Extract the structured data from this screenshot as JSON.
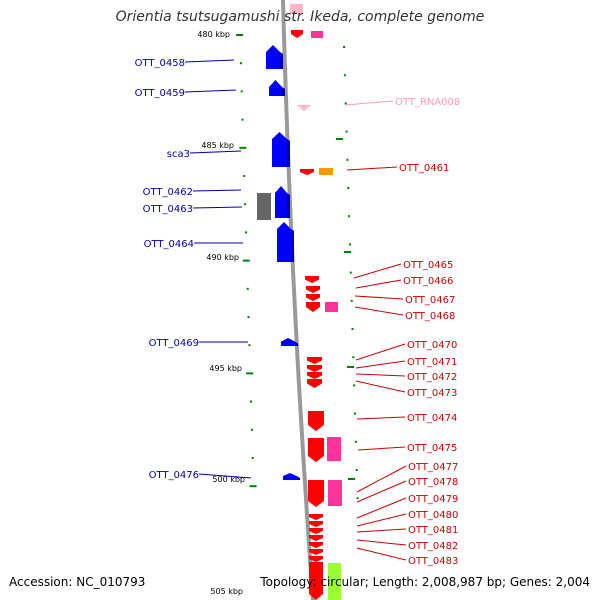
{
  "title": "Orientia tsutsugamushi str. Ikeda, complete genome",
  "accession": "Accession: NC_010793",
  "topology": "Topology: circular; Length: 2,008,987 bp; Genes: 2,004",
  "scale_labels": [
    "480 kbp",
    "485 kbp",
    "490 kbp",
    "495 kbp",
    "500 kbp",
    "505 kbp"
  ],
  "colors": {
    "minus_strand_gene": "#0000ff",
    "minus_strand_dark": "#0000b0",
    "plus_strand_gene": "#ff0000",
    "plus_strand_dark": "#b00000",
    "rna": "#ffb6c8",
    "pseudo_gray": "#666666",
    "magenta_feature": "#ff3399",
    "orange_feature": "#ff9900",
    "lime_feature": "#99ff33",
    "backbone": "#999999",
    "tick": "#008000",
    "minus_label": "#0000aa",
    "plus_label": "#cc0000",
    "rna_label": "#ff99bb"
  },
  "left_labels": [
    "OTT_0458",
    "OTT_0459",
    "sca3",
    "OTT_0462",
    "OTT_0463",
    "OTT_0464",
    "OTT_0469",
    "OTT_0476"
  ],
  "right_labels": [
    "OTT_RNA008",
    "OTT_0461",
    "OTT_0465",
    "OTT_0466",
    "OTT_0467",
    "OTT_0468",
    "OTT_0470",
    "OTT_0471",
    "OTT_0472",
    "OTT_0473",
    "OTT_0474",
    "OTT_0475",
    "OTT_0477",
    "OTT_0478",
    "OTT_0479",
    "OTT_0480",
    "OTT_0481",
    "OTT_0482",
    "OTT_0483"
  ]
}
